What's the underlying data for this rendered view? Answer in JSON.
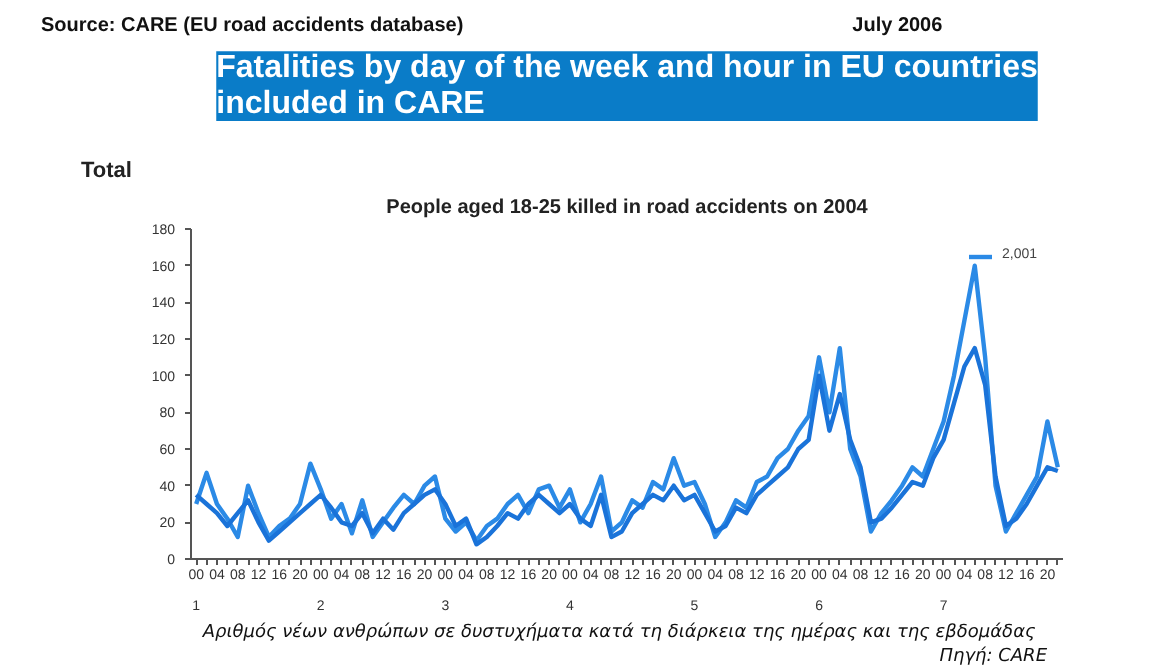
{
  "chart_data": {
    "type": "line",
    "title": "Fatalities by day of the week and hour in EU countries\nincluded in CARE",
    "subtitle": "People aged 18-25 killed in road accidents on 2004",
    "ylabel": "Total",
    "annotations": [
      "Source: CARE (EU road accidents database)",
      "July  2006",
      "Αριθμός νέων ανθρώπων  σε δυστυχήματα  κατά τη διάρκεια της ημέρας και της εβδομάδας",
      "Πηγή: CARE"
    ],
    "categories": [
      "00\n1",
      null,
      "04",
      null,
      "08",
      null,
      "12",
      null,
      "16",
      null,
      "20",
      null,
      "00\n2",
      null,
      "04",
      null,
      "08",
      null,
      "12",
      null,
      "16",
      null,
      "20",
      null,
      "00\n3",
      null,
      "04",
      null,
      "08",
      null,
      "12",
      null,
      "16",
      null,
      "20",
      null,
      "00\n4",
      null,
      "04",
      null,
      "08",
      null,
      "12",
      null,
      "16",
      null,
      "20",
      null,
      "00\n5",
      null,
      "04",
      null,
      "08",
      null,
      "12",
      null,
      "16",
      null,
      "20",
      null,
      "00\n6",
      null,
      "04",
      null,
      "08",
      null,
      "12",
      null,
      "16",
      null,
      "20",
      null,
      "00\n7",
      null,
      "04",
      null,
      "08",
      null,
      "12",
      null,
      "16",
      null,
      "20",
      null
    ],
    "series": [
      {
        "name": "2,001",
        "color": "#2b8ae6",
        "values": [
          30,
          47,
          30,
          22,
          12,
          40,
          25,
          12,
          18,
          22,
          30,
          52,
          38,
          22,
          30,
          14,
          32,
          12,
          20,
          28,
          35,
          30,
          40,
          45,
          22,
          15,
          20,
          10,
          18,
          22,
          30,
          35,
          25,
          38,
          40,
          28,
          38,
          20,
          30,
          45,
          15,
          20,
          32,
          28,
          42,
          38,
          55,
          40,
          42,
          30,
          12,
          20,
          32,
          28,
          42,
          45,
          55,
          60,
          70,
          78,
          110,
          80,
          115,
          60,
          45,
          15,
          25,
          32,
          40,
          50,
          45,
          60,
          75,
          100,
          130,
          160,
          110,
          40,
          15,
          25,
          35,
          45,
          75,
          50
        ]
      },
      {
        "color": "#1a73d9",
        "values": [
          35,
          30,
          25,
          18,
          25,
          32,
          20,
          10,
          15,
          20,
          25,
          30,
          35,
          28,
          20,
          18,
          25,
          14,
          22,
          16,
          25,
          30,
          35,
          38,
          30,
          18,
          22,
          8,
          12,
          18,
          25,
          22,
          30,
          35,
          30,
          25,
          30,
          22,
          18,
          35,
          12,
          15,
          25,
          30,
          35,
          32,
          40,
          32,
          35,
          25,
          15,
          18,
          28,
          25,
          35,
          40,
          45,
          50,
          60,
          65,
          100,
          70,
          90,
          65,
          50,
          20,
          22,
          28,
          35,
          42,
          40,
          55,
          65,
          85,
          105,
          115,
          95,
          45,
          18,
          22,
          30,
          40,
          50,
          48
        ]
      }
    ],
    "ylim": [
      0,
      180
    ],
    "yticks": [
      0,
      20,
      40,
      60,
      80,
      100,
      120,
      140,
      160,
      180
    ],
    "grid": false,
    "legend": "top right",
    "marker": "none",
    "line_style": "solid"
  }
}
